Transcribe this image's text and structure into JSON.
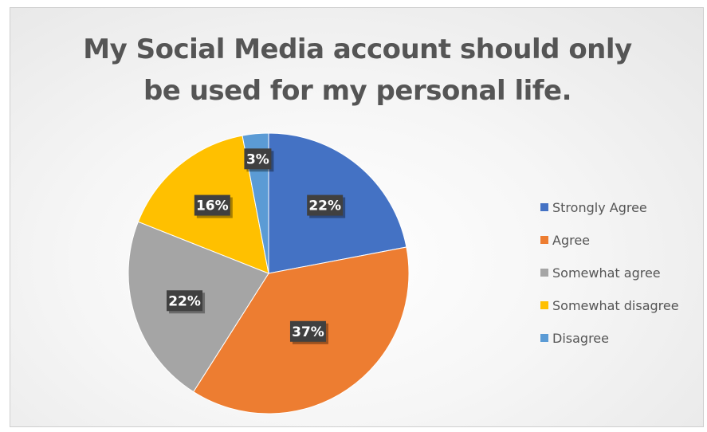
{
  "chart_data": {
    "type": "pie",
    "title": "My Social Media account should only be used for my personal life.",
    "title_lines": [
      "My Social Media account should only",
      "be used for my personal life."
    ],
    "categories": [
      "Strongly Agree",
      "Agree",
      "Somewhat agree",
      "Somewhat disagree",
      "Disagree"
    ],
    "values": [
      22,
      37,
      22,
      16,
      3
    ],
    "labels": [
      "22%",
      "37%",
      "22%",
      "16%",
      "3%"
    ],
    "colors": [
      "#4472C4",
      "#ED7D31",
      "#A5A5A5",
      "#FFC000",
      "#5B9BD5"
    ],
    "legend": {
      "position": "right",
      "items": [
        {
          "label": "Strongly Agree",
          "color": "#4472C4"
        },
        {
          "label": "Agree",
          "color": "#ED7D31"
        },
        {
          "label": "Somewhat agree",
          "color": "#A5A5A5"
        },
        {
          "label": "Somewhat disagree",
          "color": "#FFC000"
        },
        {
          "label": "Disagree",
          "color": "#5B9BD5"
        }
      ]
    },
    "start_angle": "12 o'clock",
    "direction": "clockwise"
  }
}
